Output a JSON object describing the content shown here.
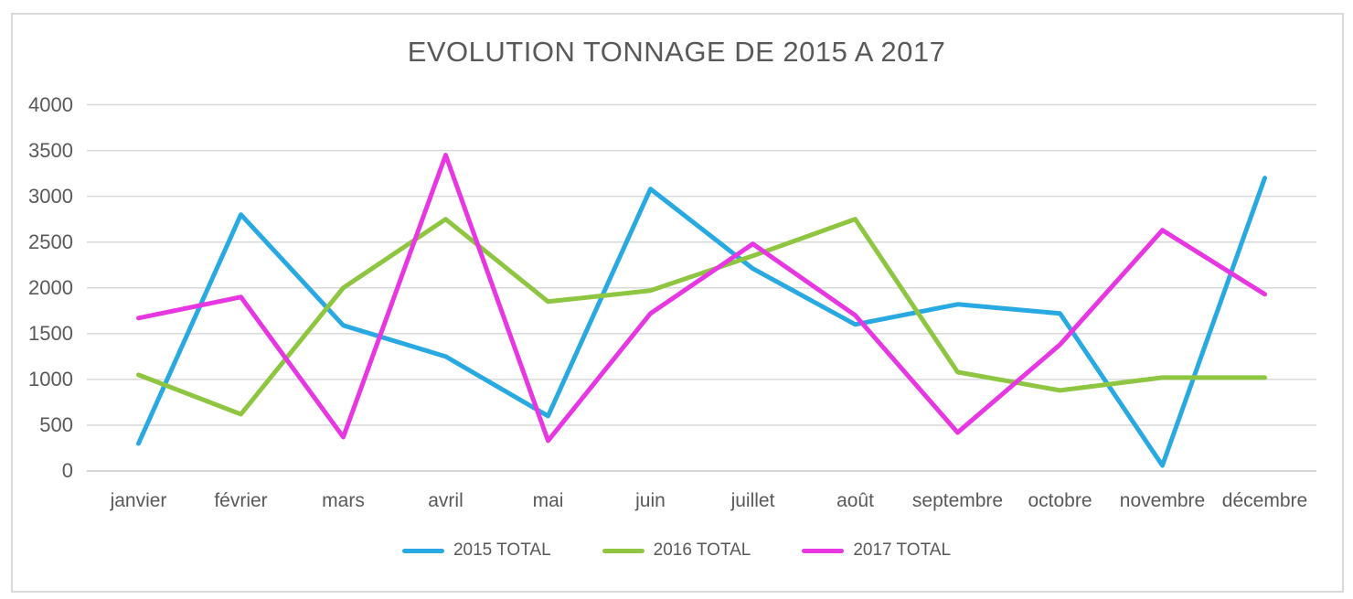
{
  "title": "EVOLUTION TONNAGE DE 2015 A 2017",
  "colors": {
    "series_2015": "#29A9E1",
    "series_2016": "#8EC641",
    "series_2017": "#E637E3",
    "gridline": "#D9D9D9",
    "baseline": "#C6C6C6",
    "text": "#595959",
    "frame_border": "#D9D9D9"
  },
  "chart_data": {
    "type": "line",
    "title": "EVOLUTION TONNAGE DE 2015 A 2017",
    "categories": [
      "janvier",
      "février",
      "mars",
      "avril",
      "mai",
      "juin",
      "juillet",
      "août",
      "septembre",
      "octobre",
      "novembre",
      "décembre"
    ],
    "series": [
      {
        "name": "2015 TOTAL",
        "color": "#29A9E1",
        "values": [
          300,
          2800,
          1590,
          1250,
          600,
          3080,
          2210,
          1600,
          1820,
          1720,
          60,
          3200
        ]
      },
      {
        "name": "2016 TOTAL",
        "color": "#8EC641",
        "values": [
          1050,
          620,
          2000,
          2750,
          1850,
          1970,
          2350,
          2750,
          1080,
          880,
          1020,
          1020
        ]
      },
      {
        "name": "2017 TOTAL",
        "color": "#E637E3",
        "values": [
          1670,
          1900,
          370,
          3450,
          330,
          1720,
          2480,
          1700,
          420,
          1380,
          2630,
          1930
        ]
      }
    ],
    "xlabel": "",
    "ylabel": "",
    "ylim": [
      0,
      4000
    ],
    "ytick_step": 500,
    "yticks": [
      "0",
      "500",
      "1000",
      "1500",
      "2000",
      "2500",
      "3000",
      "3500",
      "4000"
    ],
    "grid": true,
    "legend_position": "bottom"
  }
}
